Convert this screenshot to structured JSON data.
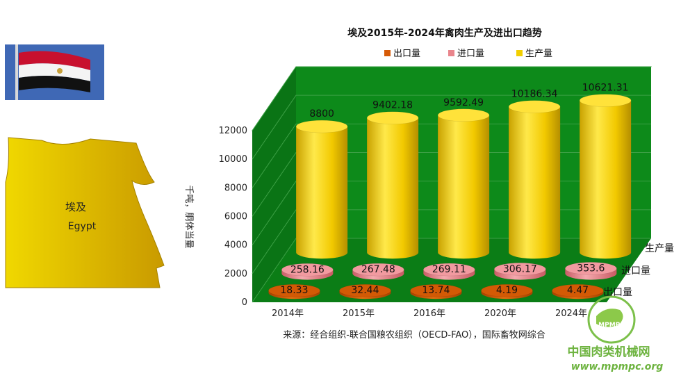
{
  "map": {
    "name_cn": "埃及",
    "name_en": "Egypt"
  },
  "source_note": "来源：经合组织-联合国粮农组织（OECD-FAO），国际畜牧网综合",
  "watermark": {
    "cn": "中国肉类机械网",
    "url": "www.mpmpc.org",
    "logo_text": "MPMPC"
  },
  "colors": {
    "wall": "#0d8a1a",
    "floor": "#0b7d16",
    "production": "#f2cf00",
    "import": "#e9858c",
    "export": "#d65a06"
  },
  "chart_data": {
    "type": "bar",
    "title": "埃及2015年-2024年禽肉生产及进出口趋势",
    "ylabel": "千吨，胴体当量",
    "ylim": [
      0,
      12000
    ],
    "yticks": [
      "0",
      "2000",
      "4000",
      "6000",
      "8000",
      "10000",
      "12000"
    ],
    "categories": [
      "2014年",
      "2015年",
      "2016年",
      "2020年",
      "2024年"
    ],
    "legend_position": "top",
    "series": [
      {
        "name": "出口量",
        "depth_label": "出口量",
        "values": [
          18.33,
          32.44,
          13.74,
          4.19,
          4.47
        ],
        "labels": [
          "18.33",
          "32.44",
          "13.74",
          "4.19",
          "4.47"
        ]
      },
      {
        "name": "进口量",
        "depth_label": "进口量",
        "values": [
          258.16,
          267.48,
          269.11,
          306.17,
          353.6
        ],
        "labels": [
          "258.16",
          "267.48",
          "269.11",
          "306.17",
          "353.6"
        ]
      },
      {
        "name": "生产量",
        "depth_label": "生产量",
        "values": [
          8800,
          9402.18,
          9592.49,
          10186.34,
          10621.31
        ],
        "labels": [
          "8800",
          "9402.18",
          "9592.49",
          "10186.34",
          "10621.31"
        ]
      }
    ]
  }
}
